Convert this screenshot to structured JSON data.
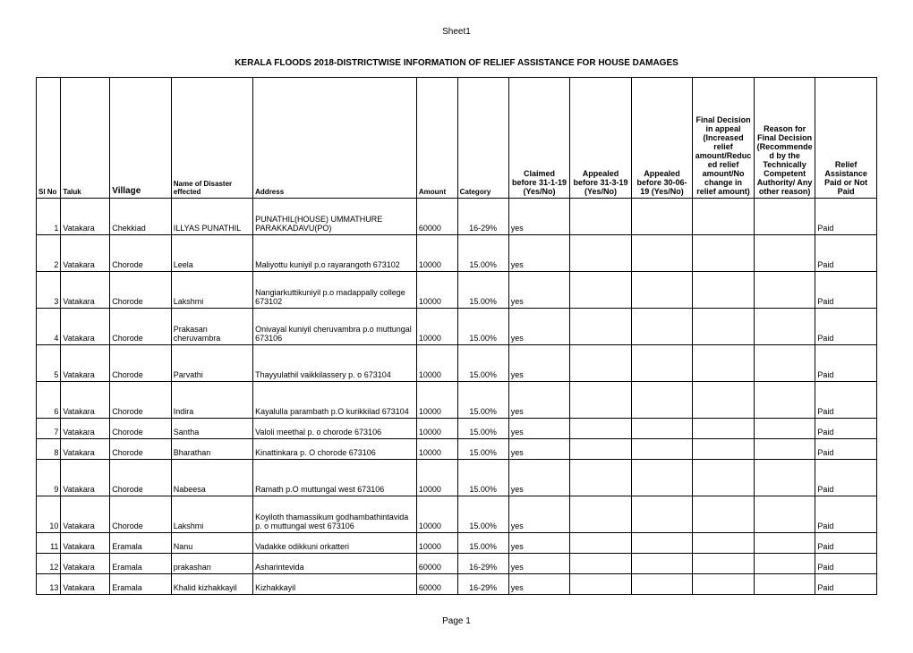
{
  "sheet_name": "Sheet1",
  "report_title": "KERALA FLOODS 2018-DISTRICTWISE INFORMATION OF RELIEF ASSISTANCE FOR HOUSE DAMAGES",
  "page_footer": "Page 1",
  "headers": {
    "sl_no": "Sl No",
    "taluk": "Taluk",
    "village": "Village",
    "name": "Name of Disaster effected",
    "address": "Address",
    "amount": "Amount",
    "category": "Category",
    "claimed": "Claimed before 31-1-19 (Yes/No)",
    "appealed_31_3": "Appealed before 31-3-19 (Yes/No)",
    "appealed_30_06": "Appealed before 30-06-19 (Yes/No)",
    "final_decision": "Final Decision in appeal (Increased relief amount/Reduced relief amount/No change in relief amount)",
    "reason": "Reason for Final Decision (Recommended by the Technically Competent Authority/ Any other reason)",
    "paid": "Relief Assistance Paid or Not Paid"
  },
  "rows": [
    {
      "sl": "1",
      "taluk": "Vatakara",
      "village": "Chekkiad",
      "name": "ILLYAS PUNATHIL",
      "address": "PUNATHIL(HOUSE) UMMATHURE PARAKKADAVU(PO)",
      "amount": "60000",
      "category": "16-29%",
      "claimed": "yes",
      "paid": "Paid",
      "h": "data-row"
    },
    {
      "sl": "2",
      "taluk": "Vatakara",
      "village": "Chorode",
      "name": "Leela",
      "address": "Maliyottu kuniyil p.o rayarangoth 673102",
      "amount": "10000",
      "category": "15.00%",
      "claimed": "yes",
      "paid": "Paid",
      "h": "data-row"
    },
    {
      "sl": "3",
      "taluk": "Vatakara",
      "village": "Chorode",
      "name": "Lakshmi",
      "address": "Nangiarkuttikuniyil p.o madappally college 673102",
      "amount": "10000",
      "category": "15.00%",
      "claimed": "yes",
      "paid": "Paid",
      "h": "data-row"
    },
    {
      "sl": "4",
      "taluk": "Vatakara",
      "village": "Chorode",
      "name": "Prakasan cheruvambra",
      "address": "Onivayal kuniyil cheruvambra p.o muttungal 673106",
      "amount": "10000",
      "category": "15.00%",
      "claimed": "yes",
      "paid": "Paid",
      "h": "data-row"
    },
    {
      "sl": "5",
      "taluk": "Vatakara",
      "village": "Chorode",
      "name": "Parvathi",
      "address": "Thayyulathil vaikkilassery p. o 673104",
      "amount": "10000",
      "category": "15.00%",
      "claimed": "yes",
      "paid": "Paid",
      "h": "data-row"
    },
    {
      "sl": "6",
      "taluk": "Vatakara",
      "village": "Chorode",
      "name": "Indira",
      "address": "Kayalulla parambath  p.O kurikkilad 673104",
      "amount": "10000",
      "category": "15.00%",
      "claimed": "yes",
      "paid": "Paid",
      "h": "data-row"
    },
    {
      "sl": "7",
      "taluk": "Vatakara",
      "village": "Chorode",
      "name": "Santha",
      "address": "Valoli meethal p. o chorode 673106",
      "amount": "10000",
      "category": "15.00%",
      "claimed": "yes",
      "paid": "Paid",
      "h": "data-row-short"
    },
    {
      "sl": "8",
      "taluk": "Vatakara",
      "village": "Chorode",
      "name": "Bharathan",
      "address": "Kinattinkara  p. O chorode 673106",
      "amount": "10000",
      "category": "15.00%",
      "claimed": "yes",
      "paid": "Paid",
      "h": "data-row-short"
    },
    {
      "sl": "9",
      "taluk": "Vatakara",
      "village": "Chorode",
      "name": "Nabeesa",
      "address": "Ramath p.O muttungal west 673106",
      "amount": "10000",
      "category": "15.00%",
      "claimed": "yes",
      "paid": "Paid",
      "h": "data-row"
    },
    {
      "sl": "10",
      "taluk": "Vatakara",
      "village": "Chorode",
      "name": "Lakshmi",
      "address": "Koyiloth thamassikum godhambathintavida p. o muttungal west 673106",
      "amount": "10000",
      "category": "15.00%",
      "claimed": "yes",
      "paid": "Paid",
      "h": "data-row"
    },
    {
      "sl": "11",
      "taluk": "Vatakara",
      "village": "Eramala",
      "name": "Nanu",
      "address": "Vadakke odikkuni orkatteri",
      "amount": "10000",
      "category": "15.00%",
      "claimed": "yes",
      "paid": "Paid",
      "h": "data-row-short"
    },
    {
      "sl": "12",
      "taluk": "Vatakara",
      "village": "Eramala",
      "name": "prakashan",
      "address": "Asharintevida",
      "amount": "60000",
      "category": "16-29%",
      "claimed": "yes",
      "paid": "Paid",
      "h": "data-row-short"
    },
    {
      "sl": "13",
      "taluk": "Vatakara",
      "village": "Eramala",
      "name": "Khalid kizhakkayil",
      "address": "Kizhakkayil",
      "amount": "60000",
      "category": "16-29%",
      "claimed": "yes",
      "paid": "Paid",
      "h": "data-row-short"
    }
  ]
}
